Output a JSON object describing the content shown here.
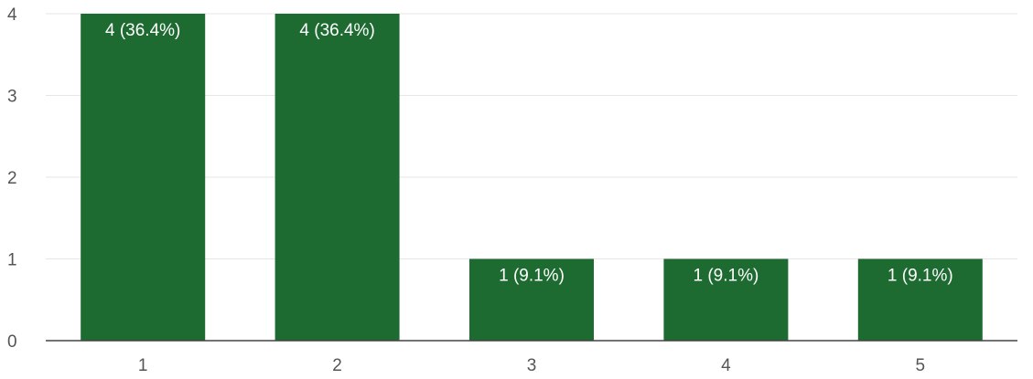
{
  "chart_data": {
    "type": "bar",
    "categories": [
      "1",
      "2",
      "3",
      "4",
      "5"
    ],
    "values": [
      4,
      4,
      1,
      1,
      1
    ],
    "data_labels": [
      "4 (36.4%)",
      "4 (36.4%)",
      "1 (9.1%)",
      "1 (9.1%)",
      "1 (9.1%)"
    ],
    "y_ticks": [
      "0",
      "1",
      "2",
      "3",
      "4"
    ],
    "ylim": [
      0,
      4
    ],
    "grid": true,
    "bar_color": "#1e6b32",
    "title": "",
    "xlabel": "",
    "ylabel": ""
  }
}
